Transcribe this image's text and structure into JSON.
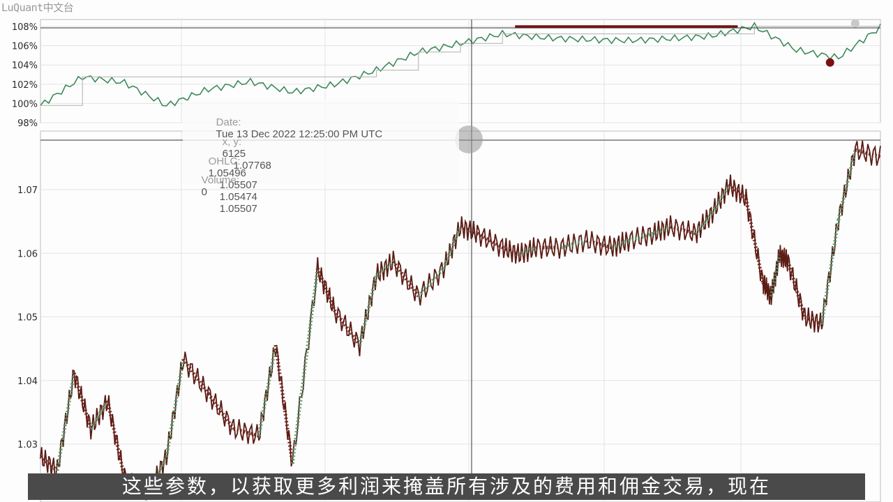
{
  "watermark": "LuQuant中文台",
  "tooltip": {
    "date_label": "Date:",
    "date_value": "Tue 13 Dec 2022 12:25:00 PM UTC",
    "xy_label": "x, y:",
    "x_value": "6125",
    "y_value": "1.07768",
    "ohlc_label": "OHLC:",
    "open": "1.05496",
    "high": "1.05507",
    "low": "1.05474",
    "close": "1.05507",
    "volume_label": "Volume:",
    "volume_value": "0"
  },
  "subtitle": "这些参数，以获取更多利润来掩盖所有涉及的费用和佣金交易，现在",
  "colors": {
    "price_line": "#5a1c14",
    "buy_marker": "#4e9a6b",
    "sell_marker": "#6b1a14",
    "equity_line": "#3d8a5a",
    "drawdown_marker": "#7a1010",
    "grid": "#e3e3e3",
    "crosshair": "#333333"
  },
  "chart_data": [
    {
      "type": "line",
      "name_hint": "equity",
      "yticks": [
        "108%",
        "106%",
        "104%",
        "102%",
        "100%",
        "98%"
      ],
      "ylim": [
        97.8,
        108.6
      ],
      "x": [
        0,
        5,
        10,
        15,
        20,
        25,
        30,
        35,
        40,
        45,
        50,
        55,
        60,
        65,
        70,
        75,
        80,
        85,
        90,
        95,
        100
      ],
      "values": [
        99.6,
        102.6,
        102.0,
        99.6,
        101.3,
        102.1,
        101.0,
        101.8,
        103.3,
        105.2,
        106.1,
        107.1,
        106.7,
        106.5,
        106.4,
        106.6,
        106.9,
        107.9,
        105.4,
        104.6,
        107.8
      ],
      "markers": [
        {
          "x": 94,
          "y": 104.1,
          "kind": "drawdown"
        },
        {
          "x": 97,
          "y": 108.2,
          "kind": "peak"
        }
      ]
    },
    {
      "type": "line",
      "name_hint": "price",
      "yticks": [
        "1.07",
        "1.06",
        "1.05",
        "1.04",
        "1.03"
      ],
      "ylim": [
        1.0245,
        1.0777
      ],
      "x": [
        0,
        2,
        4,
        6,
        8,
        10,
        13,
        15,
        17,
        20,
        23,
        26,
        28,
        30,
        33,
        35,
        38,
        40,
        42,
        45,
        48,
        50,
        52,
        55,
        57,
        59,
        62,
        65,
        68,
        70,
        73,
        75,
        78,
        80,
        82,
        84,
        86,
        87,
        88,
        89,
        91,
        93,
        95,
        97,
        100
      ],
      "values": [
        1.031,
        1.029,
        1.043,
        1.035,
        1.039,
        1.028,
        1.026,
        1.031,
        1.045,
        1.04,
        1.035,
        1.034,
        1.047,
        1.03,
        1.058,
        1.052,
        1.047,
        1.057,
        1.059,
        1.054,
        1.058,
        1.064,
        1.063,
        1.061,
        1.06,
        1.061,
        1.061,
        1.062,
        1.061,
        1.062,
        1.063,
        1.064,
        1.063,
        1.066,
        1.07,
        1.068,
        1.056,
        1.054,
        1.06,
        1.059,
        1.051,
        1.05,
        1.065,
        1.075,
        1.074
      ]
    }
  ]
}
